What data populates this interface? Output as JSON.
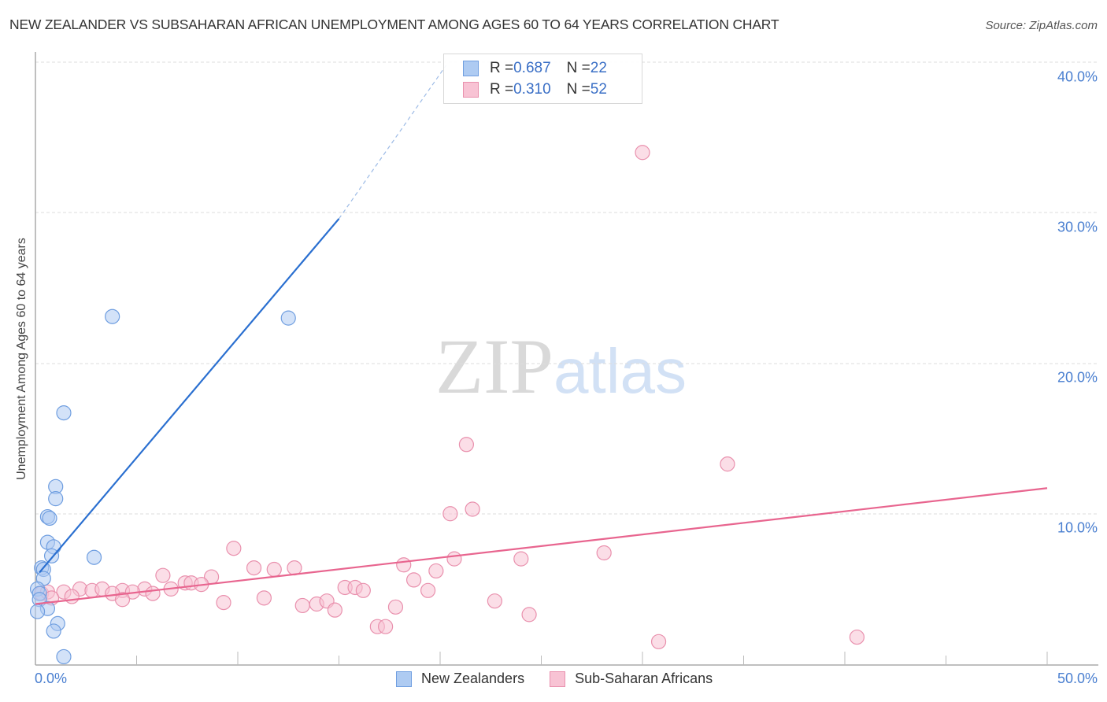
{
  "header": {
    "title": "NEW ZEALANDER VS SUBSAHARAN AFRICAN UNEMPLOYMENT AMONG AGES 60 TO 64 YEARS CORRELATION CHART",
    "source": "Source: ZipAtlas.com"
  },
  "watermark": {
    "zip": "ZIP",
    "atlas": "atlas"
  },
  "stats_legend": {
    "rows": [
      {
        "r_label": "R = ",
        "r_value": "0.687",
        "n_label": "N = ",
        "n_value": "22",
        "color": "#aecbf2",
        "border": "#6f9ee0"
      },
      {
        "r_label": "R = ",
        "r_value": "0.310",
        "n_label": "N = ",
        "n_value": "52",
        "color": "#f8c3d4",
        "border": "#e990ad"
      }
    ]
  },
  "axes": {
    "y_label": "Unemployment Among Ages 60 to 64 years",
    "y_ticks": [
      "40.0%",
      "30.0%",
      "20.0%",
      "10.0%"
    ],
    "x_ticks": [
      "0.0%",
      "50.0%"
    ]
  },
  "legend": {
    "items": [
      {
        "label": "New Zealanders",
        "color": "#aecbf2",
        "border": "#6f9ee0"
      },
      {
        "label": "Sub-Saharan Africans",
        "color": "#f8c3d4",
        "border": "#e990ad"
      }
    ]
  },
  "colors": {
    "blue_fill": "#aecbf2",
    "blue_stroke": "#6f9ee0",
    "blue_line": "#2a6fd0",
    "pink_fill": "#f8c3d4",
    "pink_stroke": "#e990ad",
    "pink_line": "#e8658f",
    "tick_label": "#4a7fd0"
  },
  "chart_data": {
    "type": "scatter",
    "title": "NEW ZEALANDER VS SUBSAHARAN AFRICAN UNEMPLOYMENT AMONG AGES 60 TO 64 YEARS CORRELATION CHART",
    "xlabel": "",
    "ylabel": "Unemployment Among Ages 60 to 64 years",
    "xlim": [
      0,
      50
    ],
    "ylim": [
      0,
      40
    ],
    "x_ticks": [
      "0.0%",
      "50.0%"
    ],
    "y_ticks": [
      "10.0%",
      "20.0%",
      "30.0%",
      "40.0%"
    ],
    "grid": "horizontal dashed",
    "legend_position": "bottom",
    "series": [
      {
        "name": "New Zealanders",
        "r": 0.687,
        "n": 22,
        "points": [
          [
            3.8,
            23.1
          ],
          [
            12.5,
            23.0
          ],
          [
            1.4,
            16.7
          ],
          [
            1.0,
            11.8
          ],
          [
            1.0,
            11.0
          ],
          [
            0.6,
            9.8
          ],
          [
            0.7,
            9.7
          ],
          [
            0.6,
            8.1
          ],
          [
            0.9,
            7.8
          ],
          [
            0.8,
            7.2
          ],
          [
            2.9,
            7.1
          ],
          [
            0.3,
            6.4
          ],
          [
            0.4,
            6.3
          ],
          [
            0.4,
            5.7
          ],
          [
            0.1,
            5.0
          ],
          [
            0.2,
            4.7
          ],
          [
            0.2,
            4.3
          ],
          [
            0.6,
            3.7
          ],
          [
            0.1,
            3.5
          ],
          [
            1.1,
            2.7
          ],
          [
            0.9,
            2.2
          ],
          [
            1.4,
            0.5
          ]
        ],
        "trendline": {
          "x0": 0.2,
          "y0": 6.1,
          "x1": 15.0,
          "y1": 29.6,
          "dashed_extension_to": [
            20.3,
            39.8
          ]
        }
      },
      {
        "name": "Sub-Saharan Africans",
        "r": 0.31,
        "n": 52,
        "points": [
          [
            30.0,
            34.0
          ],
          [
            21.3,
            14.6
          ],
          [
            34.2,
            13.3
          ],
          [
            21.6,
            10.3
          ],
          [
            20.5,
            10.0
          ],
          [
            9.8,
            7.7
          ],
          [
            28.1,
            7.4
          ],
          [
            24.0,
            7.0
          ],
          [
            6.3,
            5.9
          ],
          [
            18.2,
            6.6
          ],
          [
            10.8,
            6.4
          ],
          [
            11.8,
            6.3
          ],
          [
            12.8,
            6.4
          ],
          [
            20.7,
            7.0
          ],
          [
            8.7,
            5.8
          ],
          [
            7.4,
            5.4
          ],
          [
            19.8,
            6.2
          ],
          [
            7.7,
            5.4
          ],
          [
            8.2,
            5.3
          ],
          [
            5.4,
            5.0
          ],
          [
            6.7,
            5.0
          ],
          [
            18.7,
            5.6
          ],
          [
            15.3,
            5.1
          ],
          [
            15.8,
            5.1
          ],
          [
            16.2,
            4.9
          ],
          [
            19.4,
            4.9
          ],
          [
            0.3,
            4.7
          ],
          [
            0.6,
            4.8
          ],
          [
            1.4,
            4.8
          ],
          [
            2.2,
            5.0
          ],
          [
            2.8,
            4.9
          ],
          [
            3.3,
            5.0
          ],
          [
            4.3,
            4.9
          ],
          [
            3.8,
            4.7
          ],
          [
            4.8,
            4.8
          ],
          [
            5.8,
            4.7
          ],
          [
            4.3,
            4.3
          ],
          [
            11.3,
            4.4
          ],
          [
            9.3,
            4.1
          ],
          [
            22.7,
            4.2
          ],
          [
            13.2,
            3.9
          ],
          [
            13.9,
            4.0
          ],
          [
            14.4,
            4.2
          ],
          [
            14.8,
            3.6
          ],
          [
            17.8,
            3.8
          ],
          [
            24.4,
            3.3
          ],
          [
            16.9,
            2.5
          ],
          [
            17.3,
            2.5
          ],
          [
            30.8,
            1.5
          ],
          [
            40.6,
            1.8
          ],
          [
            1.8,
            4.5
          ],
          [
            0.8,
            4.4
          ]
        ],
        "trendline": {
          "x0": 0.0,
          "y0": 4.0,
          "x1": 50.0,
          "y1": 11.7
        }
      }
    ]
  }
}
